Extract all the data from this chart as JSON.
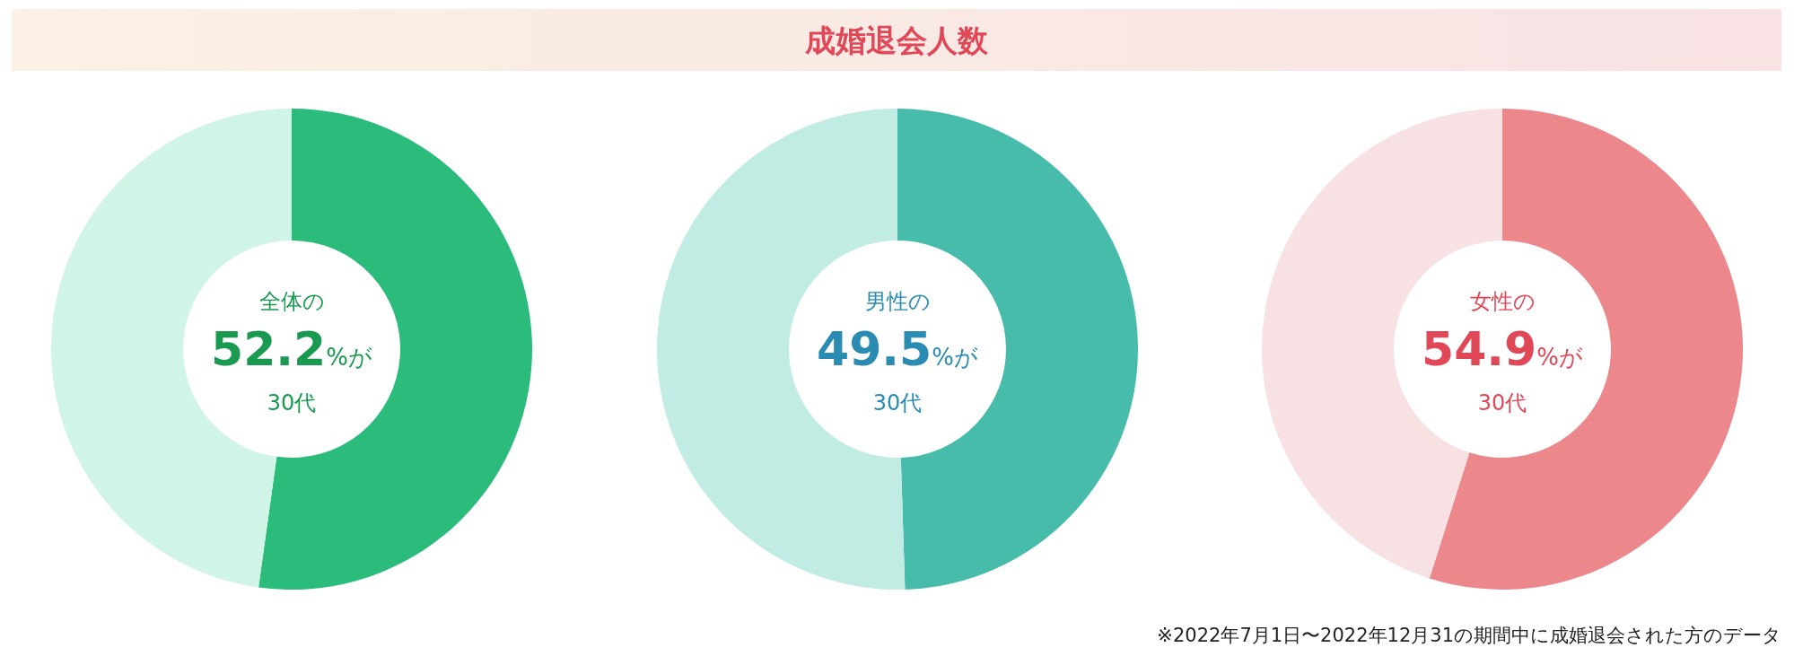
{
  "chart_data": [
    {
      "type": "donut",
      "categories": [
        null,
        null
      ],
      "values": [
        52.2,
        47.8
      ],
      "colors": [
        "#2bbc7c",
        "#d0f5e6"
      ],
      "value_labels": [
        "52.2%が",
        null
      ],
      "annotations": [
        "全体の",
        "30代"
      ]
    },
    {
      "type": "donut",
      "title": "成婚退会人数",
      "categories": [
        null,
        null
      ],
      "values": [
        49.5,
        50.5
      ],
      "colors": [
        "#47bcab",
        "#c0ece4"
      ],
      "value_labels": [
        "49.5%が",
        null
      ],
      "annotations": [
        "男性の",
        "30代"
      ]
    },
    {
      "type": "donut",
      "categories": [
        null,
        null
      ],
      "values": [
        54.9,
        45.1
      ],
      "colors": [
        "#ec878c",
        "#f7e1e3"
      ],
      "value_labels": [
        "54.9%が",
        null
      ],
      "annotations": [
        "女性の",
        "30代",
        "※2022年7月1日〜2022年12月31の期間中に成婚退会された方のデータ"
      ]
    }
  ]
}
